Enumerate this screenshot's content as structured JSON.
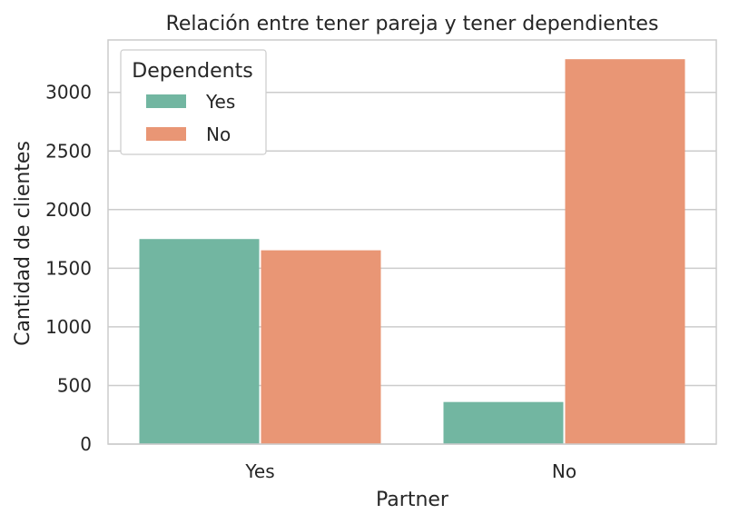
{
  "chart_data": {
    "type": "bar",
    "title": "Relación entre tener pareja y tener dependientes",
    "xlabel": "Partner",
    "ylabel": "Cantidad de clientes",
    "categories": [
      "Yes",
      "No"
    ],
    "series": [
      {
        "name": "Yes",
        "values": [
          1749,
          359
        ],
        "color": "#72b6a1"
      },
      {
        "name": "No",
        "values": [
          1653,
          3283
        ],
        "color": "#e99675"
      }
    ],
    "ylim": [
      0,
      3447
    ],
    "yticks": [
      0,
      500,
      1000,
      1500,
      2000,
      2500,
      3000
    ],
    "grid": true,
    "legend": {
      "title": "Dependents",
      "placement": "top-left"
    }
  }
}
